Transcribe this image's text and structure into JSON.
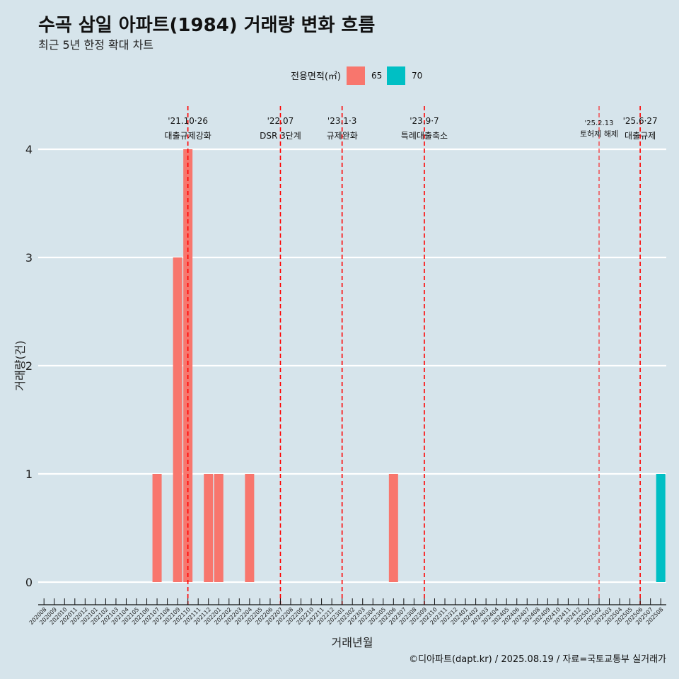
{
  "chart_data": {
    "type": "bar",
    "title": "수곡 삼일 아파트(1984) 거래량 변화 흐름",
    "subtitle": "최근 5년 한정 확대 차트",
    "xlabel": "거래년월",
    "ylabel": "거래량(건)",
    "caption": "©디아파트(dapt.kr) / 2025.08.19 / 자료=국토교통부 실거래가",
    "legend": {
      "title": "전용면적(㎡)",
      "position": "top",
      "entries": [
        {
          "label": "65",
          "color": "#F8766D"
        },
        {
          "label": "70",
          "color": "#00BFC4"
        }
      ]
    },
    "ylim": [
      0,
      4
    ],
    "yticks": [
      0,
      1,
      2,
      3,
      4
    ],
    "grid": "horizontal",
    "categories": [
      "202008",
      "202009",
      "202010",
      "202011",
      "202012",
      "202101",
      "202102",
      "202103",
      "202104",
      "202105",
      "202106",
      "202107",
      "202108",
      "202109",
      "202110",
      "202111",
      "202112",
      "202201",
      "202202",
      "202203",
      "202204",
      "202205",
      "202206",
      "202207",
      "202208",
      "202209",
      "202210",
      "202211",
      "202212",
      "202301",
      "202302",
      "202303",
      "202304",
      "202305",
      "202306",
      "202307",
      "202308",
      "202309",
      "202310",
      "202311",
      "202312",
      "202401",
      "202402",
      "202403",
      "202404",
      "202405",
      "202406",
      "202407",
      "202408",
      "202409",
      "202410",
      "202411",
      "202412",
      "202501",
      "202502",
      "202503",
      "202504",
      "202505",
      "202506",
      "202507",
      "202508"
    ],
    "series": [
      {
        "name": "65",
        "color": "#F8766D",
        "values": [
          0,
          0,
          0,
          0,
          0,
          0,
          0,
          0,
          0,
          0,
          0,
          1,
          0,
          3,
          4,
          0,
          1,
          1,
          0,
          0,
          1,
          0,
          0,
          0,
          0,
          0,
          0,
          0,
          0,
          0,
          0,
          0,
          0,
          0,
          1,
          0,
          0,
          0,
          0,
          0,
          0,
          0,
          0,
          0,
          0,
          0,
          0,
          0,
          0,
          0,
          0,
          0,
          0,
          0,
          0,
          0,
          0,
          0,
          0,
          0,
          0
        ]
      },
      {
        "name": "70",
        "color": "#00BFC4",
        "values": [
          0,
          0,
          0,
          0,
          0,
          0,
          0,
          0,
          0,
          0,
          0,
          0,
          0,
          0,
          0,
          0,
          0,
          0,
          0,
          0,
          0,
          0,
          0,
          0,
          0,
          0,
          0,
          0,
          0,
          0,
          0,
          0,
          0,
          0,
          0,
          0,
          0,
          0,
          0,
          0,
          0,
          0,
          0,
          0,
          0,
          0,
          0,
          0,
          0,
          0,
          0,
          0,
          0,
          0,
          0,
          0,
          0,
          0,
          0,
          0,
          1
        ]
      }
    ],
    "annotations": [
      {
        "date": "'21.10·26",
        "label": "대출규제강화",
        "x": "202110",
        "small": false
      },
      {
        "date": "'22.07",
        "label": "DSR 3단계",
        "x": "202207",
        "small": false
      },
      {
        "date": "'23.1·3",
        "label": "규제완화",
        "x": "202301",
        "small": false
      },
      {
        "date": "'23.9·7",
        "label": "특례대출축소",
        "x": "202309",
        "small": false
      },
      {
        "date": "'25.2.13",
        "label": "토허제 해제",
        "x": "202502",
        "small": true
      },
      {
        "date": "'25.6·27",
        "label": "대출규제",
        "x": "202506",
        "small": false
      }
    ]
  }
}
